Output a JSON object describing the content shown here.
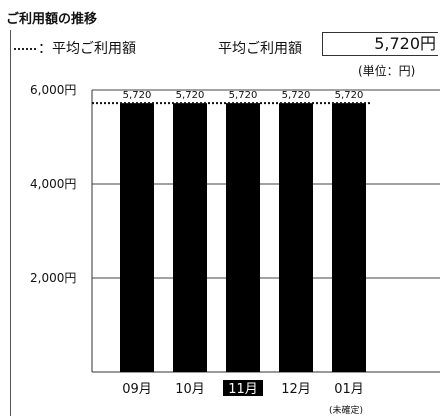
{
  "page": {
    "title": "ご利用額の推移"
  },
  "legend": {
    "avg_line_label": "：平均ご利用額"
  },
  "average": {
    "label": "平均ご利用額",
    "value": "5,720円"
  },
  "unit_label": "(単位：円)",
  "pending_note": "(未確定)",
  "chart_data": {
    "type": "bar",
    "categories": [
      "09月",
      "10月",
      "11月",
      "12月",
      "01月"
    ],
    "series": [
      {
        "values": [
          5720,
          5720,
          5720,
          5720,
          5720
        ]
      }
    ],
    "value_labels": [
      "5,720",
      "5,720",
      "5,720",
      "5,720",
      "5,720"
    ],
    "average_line": 5720,
    "y_ticks": [
      {
        "value": 2000,
        "label": "2,000円"
      },
      {
        "value": 4000,
        "label": "4,000円"
      },
      {
        "value": 6000,
        "label": "6,000円"
      }
    ],
    "ylim": [
      0,
      6000
    ],
    "selected_category": "11月",
    "bar_color": "#000000",
    "grid": true
  }
}
